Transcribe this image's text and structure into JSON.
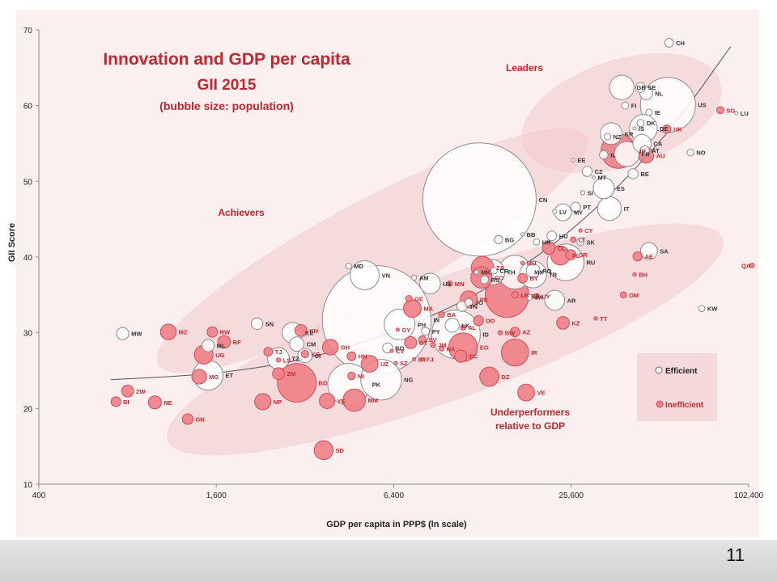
{
  "page_number": "11",
  "chart_data": {
    "type": "scatter",
    "title": "Innovation and GDP per capita",
    "subtitle": "GII 2015",
    "note": "(bubble size: population)",
    "xlabel": "GDP per capita in PPP$ (ln scale)",
    "ylabel": "GII Score",
    "x_scale": "log",
    "xlim": [
      400,
      102400
    ],
    "ylim": [
      10,
      70
    ],
    "x_ticks": [
      400,
      1600,
      6400,
      25600,
      102400
    ],
    "x_tick_labels": [
      "400",
      "1,600",
      "6,400",
      "25,600",
      "102,400"
    ],
    "y_ticks": [
      10,
      20,
      30,
      40,
      50,
      60,
      70
    ],
    "y_tick_labels": [
      "10",
      "20",
      "30",
      "40",
      "50",
      "60",
      "70"
    ],
    "grid": false,
    "legend_position": "right",
    "group_labels": [
      "Leaders",
      "Achievers",
      "Underperformers",
      "relative to GDP"
    ],
    "colors": {
      "efficient_fill": "#ffffff",
      "efficient_stroke": "#8c8c8c",
      "inefficient_fill": "#f07f86",
      "inefficient_stroke": "#d24c55",
      "title": "#c0282e",
      "label_red": "#c4282e",
      "trend": "#555555",
      "ellipse": "#f1c7c9"
    },
    "trend_line": [
      [
        700,
        23.8
      ],
      [
        1600,
        24.7
      ],
      [
        3200,
        26.6
      ],
      [
        6400,
        30.2
      ],
      [
        12800,
        35.6
      ],
      [
        25600,
        43.6
      ],
      [
        51200,
        55.3
      ],
      [
        89000,
        67.8
      ]
    ],
    "series": [
      {
        "name": "Efficient",
        "color": "#ffffff",
        "points": [
          {
            "label": "CH",
            "x": 55000,
            "y": 68.3,
            "pop": 8
          },
          {
            "label": "GB",
            "x": 38000,
            "y": 62.4,
            "pop": 64
          },
          {
            "label": "SE",
            "x": 44000,
            "y": 62.4,
            "pop": 10
          },
          {
            "label": "NL",
            "x": 46000,
            "y": 61.6,
            "pop": 17
          },
          {
            "label": "US",
            "x": 54500,
            "y": 60.1,
            "pop": 320
          },
          {
            "label": "LU",
            "x": 93000,
            "y": 59.0,
            "pop": 0.5
          },
          {
            "label": "FI",
            "x": 39000,
            "y": 60.0,
            "pop": 5.5
          },
          {
            "label": "IE",
            "x": 47000,
            "y": 59.1,
            "pop": 4.6
          },
          {
            "label": "DK",
            "x": 44000,
            "y": 57.7,
            "pop": 5.6
          },
          {
            "label": "IS",
            "x": 42000,
            "y": 57.0,
            "pop": 0.3
          },
          {
            "label": "DE",
            "x": 45000,
            "y": 57.0,
            "pop": 81
          },
          {
            "label": "KR",
            "x": 35000,
            "y": 56.3,
            "pop": 50
          },
          {
            "label": "NZ",
            "x": 34000,
            "y": 55.9,
            "pop": 4.5
          },
          {
            "label": "CA",
            "x": 44500,
            "y": 55.0,
            "pop": 35
          },
          {
            "label": "IL",
            "x": 33000,
            "y": 53.5,
            "pop": 8
          },
          {
            "label": "NO",
            "x": 65000,
            "y": 53.8,
            "pop": 5
          },
          {
            "label": "AT",
            "x": 45500,
            "y": 54.1,
            "pop": 8.5
          },
          {
            "label": "FR",
            "x": 39500,
            "y": 53.6,
            "pop": 66
          },
          {
            "label": "EE",
            "x": 26000,
            "y": 52.8,
            "pop": 1.3
          },
          {
            "label": "CZ",
            "x": 29000,
            "y": 51.3,
            "pop": 10.5
          },
          {
            "label": "MT",
            "x": 30500,
            "y": 50.5,
            "pop": 0.4
          },
          {
            "label": "BE",
            "x": 41500,
            "y": 51.0,
            "pop": 11
          },
          {
            "label": "SI",
            "x": 28000,
            "y": 48.5,
            "pop": 2
          },
          {
            "label": "ES",
            "x": 33000,
            "y": 49.1,
            "pop": 47
          },
          {
            "label": "CN",
            "x": 12500,
            "y": 47.6,
            "pop": 1360
          },
          {
            "label": "PT",
            "x": 26500,
            "y": 46.6,
            "pop": 10.4
          },
          {
            "label": "MY",
            "x": 24000,
            "y": 45.9,
            "pop": 30
          },
          {
            "label": "LV",
            "x": 22500,
            "y": 46.0,
            "pop": 2
          },
          {
            "label": "IT",
            "x": 34500,
            "y": 46.4,
            "pop": 60
          },
          {
            "label": "BB",
            "x": 17500,
            "y": 43.0,
            "pop": 0.3
          },
          {
            "label": "HU",
            "x": 22000,
            "y": 42.8,
            "pop": 10
          },
          {
            "label": "BG",
            "x": 14500,
            "y": 42.3,
            "pop": 7
          },
          {
            "label": "HR",
            "x": 19500,
            "y": 42.0,
            "pop": 4.3
          },
          {
            "label": "SK",
            "x": 27500,
            "y": 42.0,
            "pop": 5.4
          },
          {
            "label": "SA",
            "x": 47000,
            "y": 40.8,
            "pop": 30
          },
          {
            "label": "MD",
            "x": 4500,
            "y": 38.8,
            "pop": 3.5
          },
          {
            "label": "VN",
            "x": 5100,
            "y": 37.6,
            "pop": 90
          },
          {
            "label": "TH",
            "x": 13800,
            "y": 38.0,
            "pop": 67
          },
          {
            "label": "CR",
            "x": 14000,
            "y": 38.2,
            "pop": 4.8
          },
          {
            "label": "RO",
            "x": 19000,
            "y": 38.2,
            "pop": 20
          },
          {
            "label": "RU",
            "x": 24500,
            "y": 39.3,
            "pop": 143
          },
          {
            "label": "MK",
            "x": 12200,
            "y": 38.0,
            "pop": 2
          },
          {
            "label": "RS",
            "x": 13000,
            "y": 37.0,
            "pop": 7
          },
          {
            "label": "MX",
            "x": 16500,
            "y": 38.0,
            "pop": 120
          },
          {
            "label": "TR",
            "x": 19000,
            "y": 37.7,
            "pop": 76
          },
          {
            "label": "AM",
            "x": 7500,
            "y": 37.3,
            "pop": 3
          },
          {
            "label": "UA",
            "x": 8500,
            "y": 36.5,
            "pop": 45
          },
          {
            "label": "JO",
            "x": 11500,
            "y": 34.0,
            "pop": 6.5
          },
          {
            "label": "PA",
            "x": 18500,
            "y": 34.7,
            "pop": 3.9
          },
          {
            "label": "AR",
            "x": 22500,
            "y": 34.3,
            "pop": 42
          },
          {
            "label": "TN",
            "x": 10900,
            "y": 33.5,
            "pop": 11
          },
          {
            "label": "KW",
            "x": 71000,
            "y": 33.2,
            "pop": 4
          },
          {
            "label": "MW",
            "x": 770,
            "y": 29.9,
            "pop": 16
          },
          {
            "label": "SN",
            "x": 2200,
            "y": 31.2,
            "pop": 14
          },
          {
            "label": "KE",
            "x": 2900,
            "y": 30.0,
            "pop": 45
          },
          {
            "label": "PH",
            "x": 6700,
            "y": 31.1,
            "pop": 100
          },
          {
            "label": "IN",
            "x": 5600,
            "y": 31.7,
            "pop": 1250
          },
          {
            "label": "LK",
            "x": 10100,
            "y": 31.0,
            "pop": 21
          },
          {
            "label": "PY",
            "x": 8200,
            "y": 30.2,
            "pop": 7
          },
          {
            "label": "ID",
            "x": 10400,
            "y": 29.8,
            "pop": 250
          },
          {
            "label": "ML",
            "x": 1500,
            "y": 28.3,
            "pop": 16
          },
          {
            "label": "CM",
            "x": 3000,
            "y": 28.5,
            "pop": 22
          },
          {
            "label": "CI",
            "x": 3200,
            "y": 27.0,
            "pop": 22
          },
          {
            "label": "TZ",
            "x": 2600,
            "y": 26.6,
            "pop": 50
          },
          {
            "label": "BO",
            "x": 6100,
            "y": 28.0,
            "pop": 10.5
          },
          {
            "label": "ET",
            "x": 1500,
            "y": 24.4,
            "pop": 95
          },
          {
            "label": "NG",
            "x": 5800,
            "y": 23.8,
            "pop": 175
          },
          {
            "label": "PK",
            "x": 4500,
            "y": 23.2,
            "pop": 185
          }
        ]
      },
      {
        "name": "Inefficient",
        "color": "#f07f86",
        "points": [
          {
            "label": "SG",
            "x": 82000,
            "y": 59.4,
            "pop": 5.5
          },
          {
            "label": "HK",
            "x": 54000,
            "y": 56.9,
            "pop": 7.2
          },
          {
            "label": "JP",
            "x": 37000,
            "y": 54.0,
            "pop": 127
          },
          {
            "label": "AU",
            "x": 46000,
            "y": 53.4,
            "pop": 23.5
          },
          {
            "label": "CY",
            "x": 27500,
            "y": 43.5,
            "pop": 1.1
          },
          {
            "label": "LT",
            "x": 26000,
            "y": 42.3,
            "pop": 3
          },
          {
            "label": "CL",
            "x": 21500,
            "y": 41.2,
            "pop": 17.6
          },
          {
            "label": "GR",
            "x": 25500,
            "y": 40.3,
            "pop": 11
          },
          {
            "label": "AE",
            "x": 43000,
            "y": 40.1,
            "pop": 9
          },
          {
            "label": "PL",
            "x": 23500,
            "y": 40.2,
            "pop": 38
          },
          {
            "label": "MU",
            "x": 17500,
            "y": 39.2,
            "pop": 1.3
          },
          {
            "label": "ZA",
            "x": 12800,
            "y": 38.6,
            "pop": 53
          },
          {
            "label": "BH",
            "x": 42000,
            "y": 37.7,
            "pop": 1.3
          },
          {
            "label": "QA",
            "x": 130000,
            "y": 38.9,
            "pop": 2.2
          },
          {
            "label": "CO",
            "x": 12700,
            "y": 37.3,
            "pop": 48
          },
          {
            "label": "BY",
            "x": 17500,
            "y": 37.2,
            "pop": 9.5
          },
          {
            "label": "MN",
            "x": 9900,
            "y": 36.5,
            "pop": 3
          },
          {
            "label": "BR",
            "x": 15500,
            "y": 34.9,
            "pop": 200
          },
          {
            "label": "PE",
            "x": 11500,
            "y": 34.4,
            "pop": 31
          },
          {
            "label": "LB",
            "x": 16500,
            "y": 35.0,
            "pop": 4.5
          },
          {
            "label": "OM",
            "x": 38500,
            "y": 35.0,
            "pop": 4
          },
          {
            "label": "GE",
            "x": 7200,
            "y": 34.5,
            "pop": 4.5
          },
          {
            "label": "UY",
            "x": 19500,
            "y": 34.8,
            "pop": 3.4
          },
          {
            "label": "KH",
            "x": 3100,
            "y": 30.3,
            "pop": 15
          },
          {
            "label": "MZ",
            "x": 1100,
            "y": 30.1,
            "pop": 26
          },
          {
            "label": "RW",
            "x": 1550,
            "y": 30.1,
            "pop": 11.5
          },
          {
            "label": "BF",
            "x": 1700,
            "y": 28.8,
            "pop": 17
          },
          {
            "label": "MA",
            "x": 7400,
            "y": 33.2,
            "pop": 33
          },
          {
            "label": "BA",
            "x": 9300,
            "y": 32.4,
            "pop": 3.8
          },
          {
            "label": "TT",
            "x": 31000,
            "y": 31.9,
            "pop": 1.3
          },
          {
            "label": "DO",
            "x": 12400,
            "y": 31.6,
            "pop": 10.5
          },
          {
            "label": "KZ",
            "x": 24000,
            "y": 31.3,
            "pop": 17
          },
          {
            "label": "BW",
            "x": 14700,
            "y": 30.0,
            "pop": 2
          },
          {
            "label": "AL",
            "x": 11000,
            "y": 30.7,
            "pop": 2.9
          },
          {
            "label": "GY",
            "x": 6600,
            "y": 30.4,
            "pop": 0.8
          },
          {
            "label": "AZ",
            "x": 16500,
            "y": 30.1,
            "pop": 9.5
          },
          {
            "label": "SV",
            "x": 8000,
            "y": 29.1,
            "pop": 6.3
          },
          {
            "label": "JM",
            "x": 8700,
            "y": 28.4,
            "pop": 2.7
          },
          {
            "label": "GT",
            "x": 7300,
            "y": 28.7,
            "pop": 15.5
          },
          {
            "label": "UG",
            "x": 1450,
            "y": 27.1,
            "pop": 37
          },
          {
            "label": "TJ",
            "x": 2400,
            "y": 27.5,
            "pop": 8
          },
          {
            "label": "KG",
            "x": 3200,
            "y": 27.2,
            "pop": 5.8
          },
          {
            "label": "GH",
            "x": 3900,
            "y": 28.1,
            "pop": 26
          },
          {
            "label": "EG",
            "x": 11000,
            "y": 28.1,
            "pop": 87
          },
          {
            "label": "NA",
            "x": 9300,
            "y": 27.9,
            "pop": 2.3
          },
          {
            "label": "IR",
            "x": 16500,
            "y": 27.4,
            "pop": 78
          },
          {
            "label": "CV",
            "x": 6300,
            "y": 27.6,
            "pop": 0.5
          },
          {
            "label": "LS",
            "x": 2600,
            "y": 26.4,
            "pop": 2
          },
          {
            "label": "UZ",
            "x": 5300,
            "y": 25.9,
            "pop": 30
          },
          {
            "label": "HN",
            "x": 4600,
            "y": 26.9,
            "pop": 8
          },
          {
            "label": "BT",
            "x": 7500,
            "y": 26.5,
            "pop": 0.8
          },
          {
            "label": "EC",
            "x": 10800,
            "y": 26.9,
            "pop": 16
          },
          {
            "label": "FJ",
            "x": 8000,
            "y": 26.5,
            "pop": 0.9
          },
          {
            "label": "SZ",
            "x": 6500,
            "y": 26.0,
            "pop": 1.2
          },
          {
            "label": "NI",
            "x": 4600,
            "y": 24.3,
            "pop": 6
          },
          {
            "label": "ZM",
            "x": 2600,
            "y": 24.6,
            "pop": 15
          },
          {
            "label": "BD",
            "x": 3000,
            "y": 23.4,
            "pop": 158
          },
          {
            "label": "DZ",
            "x": 13500,
            "y": 24.2,
            "pop": 39
          },
          {
            "label": "MG",
            "x": 1400,
            "y": 24.2,
            "pop": 23
          },
          {
            "label": "ZW",
            "x": 800,
            "y": 22.3,
            "pop": 15
          },
          {
            "label": "VE",
            "x": 18000,
            "y": 22.1,
            "pop": 30
          },
          {
            "label": "NP",
            "x": 2300,
            "y": 20.9,
            "pop": 28
          },
          {
            "label": "MM",
            "x": 4700,
            "y": 21.1,
            "pop": 53
          },
          {
            "label": "YE",
            "x": 3800,
            "y": 21.0,
            "pop": 25
          },
          {
            "label": "BI",
            "x": 730,
            "y": 20.9,
            "pop": 10
          },
          {
            "label": "NE",
            "x": 990,
            "y": 20.8,
            "pop": 18
          },
          {
            "label": "GN",
            "x": 1280,
            "y": 18.6,
            "pop": 12
          },
          {
            "label": "SD",
            "x": 3700,
            "y": 14.5,
            "pop": 38
          }
        ]
      }
    ]
  }
}
